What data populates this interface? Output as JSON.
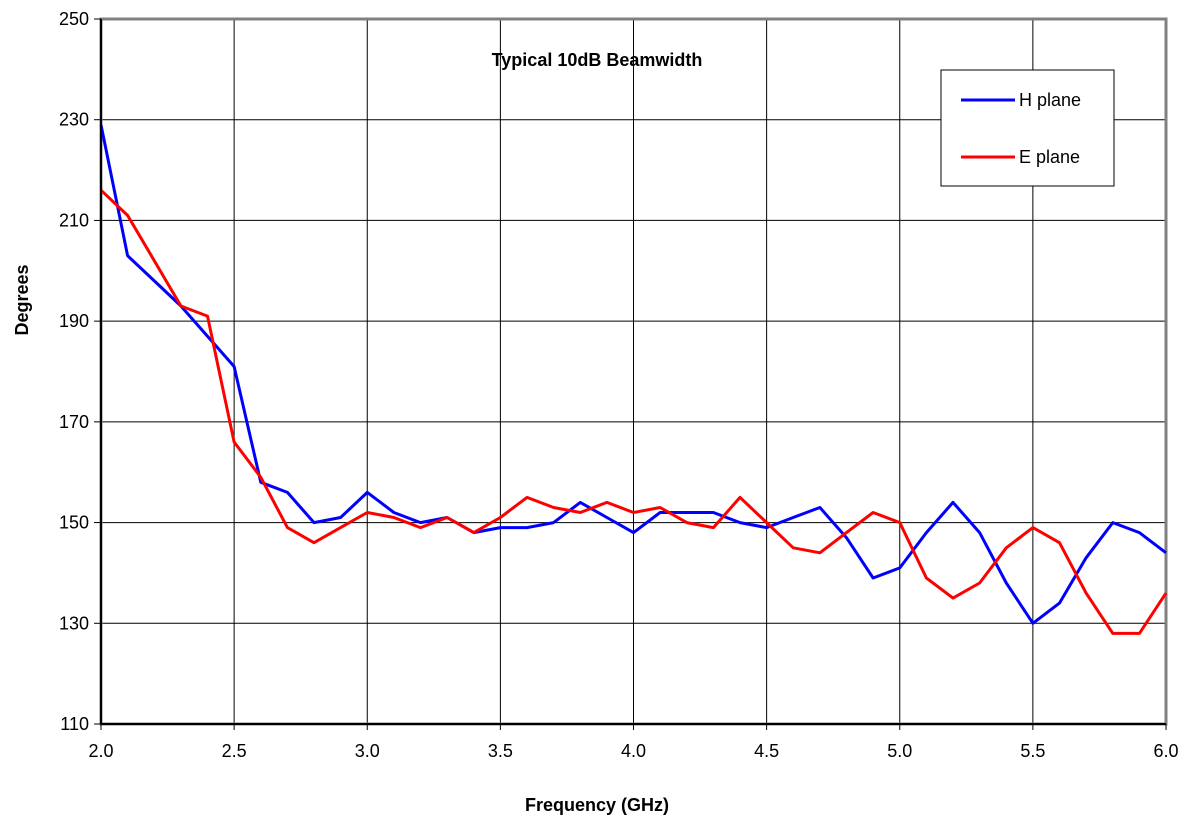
{
  "chart_data": {
    "type": "line",
    "title": "Typical 10dB Beamwidth",
    "xlabel": "Frequency  (GHz)",
    "ylabel": "Degrees",
    "xlim": [
      2.0,
      6.0
    ],
    "ylim": [
      110,
      250
    ],
    "xticks": [
      2.0,
      2.5,
      3.0,
      3.5,
      4.0,
      4.5,
      5.0,
      5.5,
      6.0
    ],
    "xtick_labels": [
      "2.0",
      "2.5",
      "3.0",
      "3.5",
      "4.0",
      "4.5",
      "5.0",
      "5.5",
      "6.0"
    ],
    "yticks": [
      110,
      130,
      150,
      170,
      190,
      210,
      230,
      250
    ],
    "ytick_labels": [
      "110",
      "130",
      "150",
      "170",
      "190",
      "210",
      "230",
      "250"
    ],
    "grid": true,
    "legend_position": "top-right",
    "x": [
      2.0,
      2.1,
      2.2,
      2.3,
      2.4,
      2.5,
      2.6,
      2.7,
      2.8,
      2.9,
      3.0,
      3.1,
      3.2,
      3.3,
      3.4,
      3.5,
      3.6,
      3.7,
      3.8,
      3.9,
      4.0,
      4.1,
      4.2,
      4.3,
      4.4,
      4.5,
      4.6,
      4.7,
      4.8,
      4.9,
      5.0,
      5.1,
      5.2,
      5.3,
      5.4,
      5.5,
      5.6,
      5.7,
      5.8,
      5.9,
      6.0
    ],
    "series": [
      {
        "name": "H plane",
        "color": "#0000ff",
        "values": [
          229,
          203,
          198,
          193,
          187,
          181,
          158,
          156,
          150,
          151,
          156,
          152,
          150,
          151,
          148,
          149,
          149,
          150,
          154,
          151,
          148,
          152,
          152,
          152,
          150,
          149,
          151,
          153,
          147,
          139,
          141,
          148,
          154,
          148,
          138,
          130,
          134,
          143,
          150,
          148,
          144
        ]
      },
      {
        "name": "E plane",
        "color": "#ff0000",
        "values": [
          216,
          211,
          202,
          193,
          191,
          166,
          159,
          149,
          146,
          149,
          152,
          151,
          149,
          151,
          148,
          151,
          155,
          153,
          152,
          154,
          152,
          153,
          150,
          149,
          155,
          150,
          145,
          144,
          148,
          152,
          150,
          139,
          135,
          138,
          145,
          149,
          146,
          136,
          128,
          128,
          136
        ]
      }
    ]
  }
}
